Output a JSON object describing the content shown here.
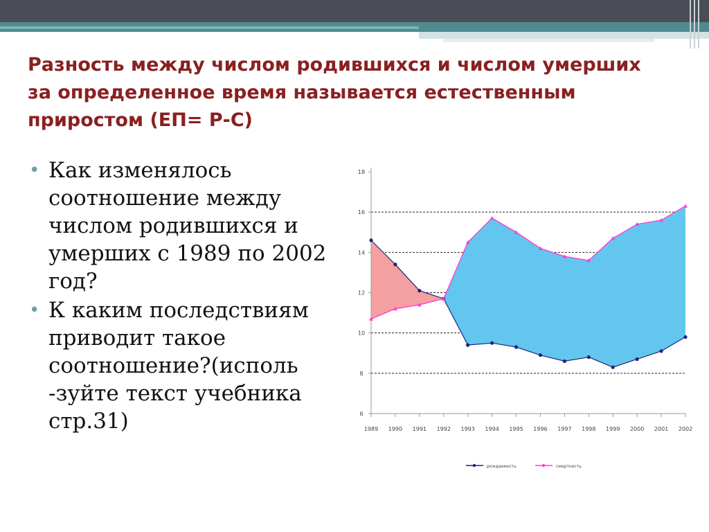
{
  "title": "Разность между числом родившихся и числом умерших за определенное время называется естественным приростом  (ЕП= Р-С)",
  "bullets": [
    "Как изменялось соотношение между числом родившихся и умерших с 1989 по 2002 год?",
    "К каким последствиям приводит такое соотношение?(исполь -зуйте текст учебника стр.31)"
  ],
  "colors": {
    "title": "#8a2020",
    "births": "#ff3fcf",
    "deaths": "#1a237e",
    "area_decline": "#f4a0a0",
    "area_growth": "#63c6ef"
  },
  "chart_data": {
    "type": "line",
    "x": [
      "1989",
      "1990",
      "1991",
      "1992",
      "1993",
      "1994",
      "1995",
      "1996",
      "1997",
      "1998",
      "1999",
      "2000",
      "2001",
      "2002"
    ],
    "series": [
      {
        "name": "рождаемость",
        "values": [
          14.6,
          13.4,
          12.1,
          11.7,
          9.4,
          9.5,
          9.3,
          8.9,
          8.6,
          8.8,
          8.3,
          8.7,
          9.1,
          9.8
        ]
      },
      {
        "name": "смертность",
        "values": [
          10.7,
          11.2,
          11.4,
          11.7,
          14.5,
          15.7,
          15.0,
          14.2,
          13.8,
          13.6,
          14.7,
          15.4,
          15.6,
          16.3
        ]
      }
    ],
    "yticks": [
      "6",
      "8",
      "10",
      "12",
      "14",
      "16",
      "18"
    ],
    "ylim": [
      6,
      18
    ],
    "grid": true,
    "legend": "bottom"
  }
}
